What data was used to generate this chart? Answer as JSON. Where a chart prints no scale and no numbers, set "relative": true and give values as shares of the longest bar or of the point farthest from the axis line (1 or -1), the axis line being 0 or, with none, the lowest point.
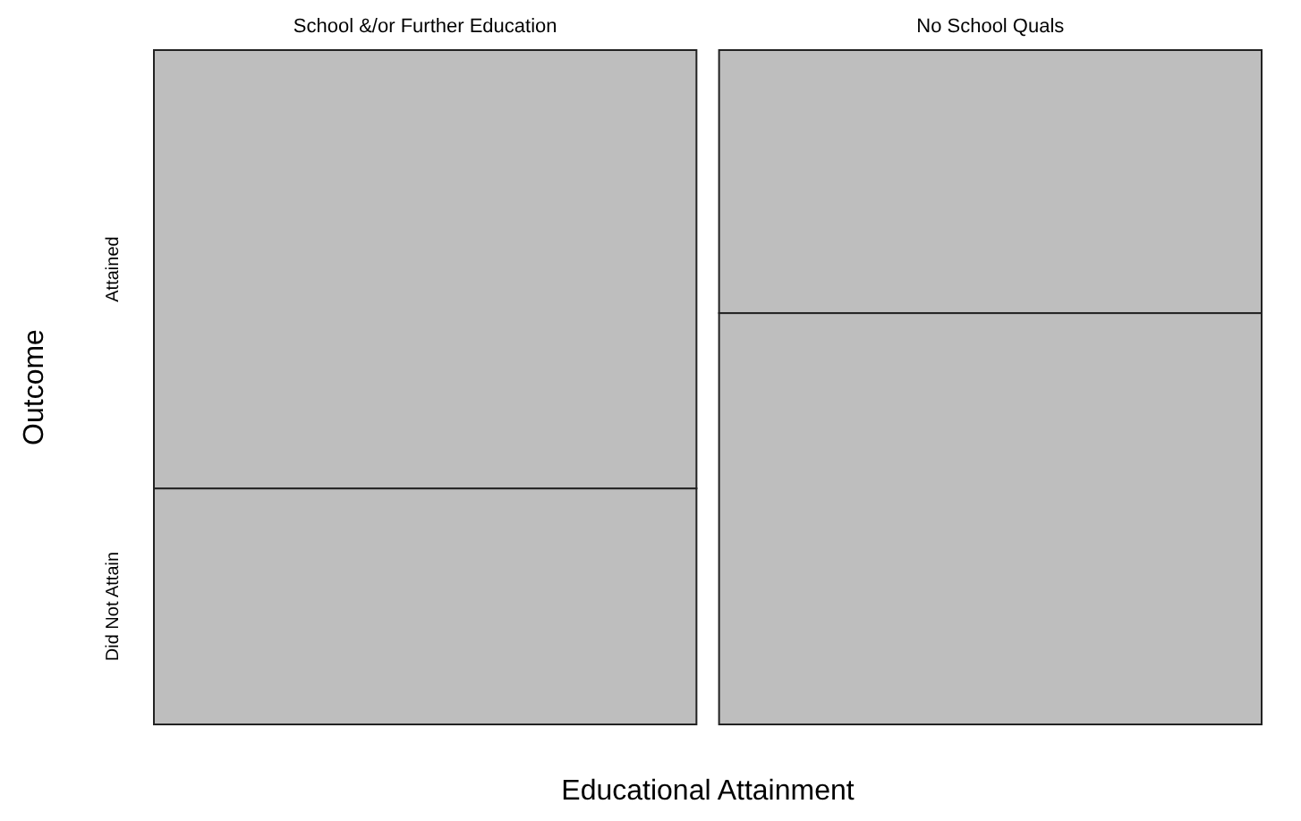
{
  "chart_data": {
    "type": "bar",
    "stacked": true,
    "relative": true,
    "xlabel": "Educational Attainment",
    "ylabel": "Outcome",
    "categories": [
      "School &/or Further Education",
      "No School Quals"
    ],
    "series": [
      {
        "name": "Did Not Attain",
        "color": "#bebebe",
        "values": [
          0.35,
          0.61
        ]
      },
      {
        "name": "Attained",
        "color": "#bebebe",
        "values": [
          0.65,
          0.39
        ]
      }
    ]
  }
}
